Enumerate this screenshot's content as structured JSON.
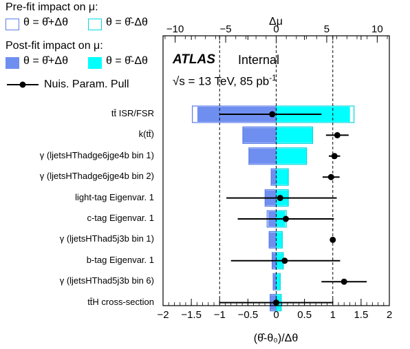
{
  "legend": {
    "prefit_title": "Pre-fit impact on  μ:",
    "prefit_up": "θ = θ̂+Δθ",
    "prefit_down": "θ = θ̂-Δθ",
    "postfit_title": "Post-fit impact on  μ:",
    "postfit_up": "θ = θ̂+Δθ",
    "postfit_down": "θ = θ̂-Δθ",
    "pull": "Nuis. Param. Pull"
  },
  "labels": {
    "atlas": "ATLAS",
    "internal": "Internal",
    "energy": "√s = 13 TeV, 85 pb",
    "energy_sup": "-1"
  },
  "colors": {
    "up": "#6f8ff0",
    "down": "#00ffff",
    "prefit_up_edge": "#5a7be8",
    "prefit_down_edge": "#00d8e0"
  },
  "chart_data": {
    "type": "ranking",
    "bottom_axis": {
      "label": "(θ̂-θ₀)/Δθ",
      "range": [
        -2,
        2
      ],
      "ticks": [
        -2,
        -1.5,
        -1,
        -0.5,
        0,
        0.5,
        1,
        1.5,
        2
      ]
    },
    "top_axis": {
      "label": "Δμ",
      "range": [
        -11.2,
        11.2
      ],
      "ticks": [
        -10,
        -5,
        0,
        5,
        10
      ]
    },
    "reference_lines": [
      -1,
      0,
      1
    ],
    "parameters": [
      {
        "name": "tt̄ ISR/FSR",
        "prefit_up": -8.3,
        "prefit_down": 7.7,
        "postfit_up": -7.8,
        "postfit_down": 7.3,
        "pull": -0.07,
        "pull_err_lo": 0.93,
        "pull_err_hi": 0.87
      },
      {
        "name": "k(tt̄)",
        "prefit_up": -3.3,
        "prefit_down": 3.6,
        "postfit_up": -3.3,
        "postfit_down": 3.6,
        "pull": 1.08,
        "pull_err_lo": 0.2,
        "pull_err_hi": 0.2
      },
      {
        "name": "γ (ljetsHThadge6jge4b bin 1)",
        "prefit_up": -2.7,
        "prefit_down": 3.0,
        "postfit_up": -2.7,
        "postfit_down": 3.0,
        "pull": 1.03,
        "pull_err_lo": 0.1,
        "pull_err_hi": 0.1
      },
      {
        "name": "γ (ljetsHThadge6jge4b bin 2)",
        "prefit_up": -0.5,
        "prefit_down": 1.2,
        "postfit_up": -0.5,
        "postfit_down": 1.2,
        "pull": 0.97,
        "pull_err_lo": 0.15,
        "pull_err_hi": 0.15
      },
      {
        "name": "light-tag Eigenvar. 1",
        "prefit_up": -1.1,
        "prefit_down": 1.2,
        "postfit_up": -1.1,
        "postfit_down": 1.2,
        "pull": 0.07,
        "pull_err_lo": 0.95,
        "pull_err_hi": 1.0
      },
      {
        "name": "c-tag Eigenvar. 1",
        "prefit_up": -0.9,
        "prefit_down": 1.0,
        "postfit_up": -0.8,
        "postfit_down": 0.9,
        "pull": 0.17,
        "pull_err_lo": 0.85,
        "pull_err_hi": 0.85
      },
      {
        "name": "γ (ljetsHThad5j3b bin 1)",
        "prefit_up": -0.7,
        "prefit_down": 0.6,
        "postfit_up": -0.7,
        "postfit_down": 0.6,
        "pull": 1.0,
        "pull_err_lo": 0.03,
        "pull_err_hi": 0.03
      },
      {
        "name": "b-tag Eigenvar. 1",
        "prefit_up": -0.4,
        "prefit_down": 0.7,
        "postfit_up": -0.4,
        "postfit_down": 0.7,
        "pull": 0.15,
        "pull_err_lo": 0.95,
        "pull_err_hi": 0.98
      },
      {
        "name": "γ (ljetsHThad5j3b bin 6)",
        "prefit_up": -0.3,
        "prefit_down": 0.4,
        "postfit_up": -0.3,
        "postfit_down": 0.4,
        "pull": 1.2,
        "pull_err_lo": 0.4,
        "pull_err_hi": 0.4
      },
      {
        "name": "tt̄H cross-section",
        "prefit_up": -0.6,
        "prefit_down": 0.5,
        "postfit_up": -0.6,
        "postfit_down": 0.5,
        "pull": 0.0,
        "pull_err_lo": 1.0,
        "pull_err_hi": 1.0
      }
    ]
  }
}
